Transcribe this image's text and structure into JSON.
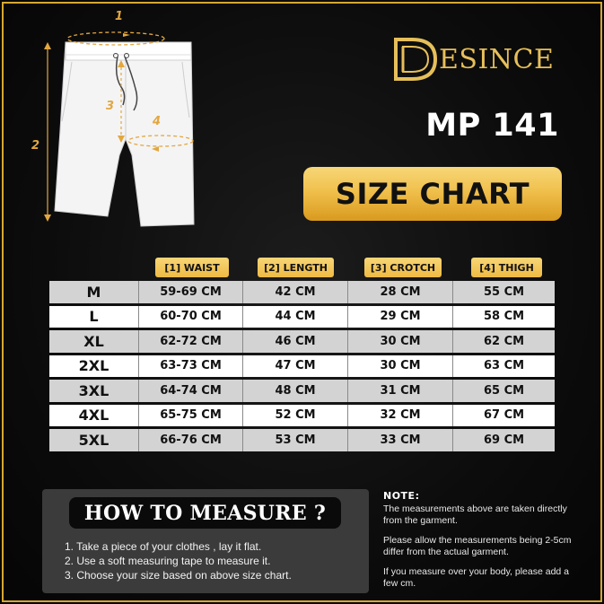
{
  "brand": {
    "name": "ESINCE",
    "logo_letter": "D"
  },
  "model": "MP 141",
  "title": "SIZE CHART",
  "measure_markers": [
    "1",
    "2",
    "3",
    "4"
  ],
  "table": {
    "headers": [
      "[1] WAIST",
      "[2] LENGTH",
      "[3] CROTCH",
      "[4] THIGH"
    ],
    "rows": [
      {
        "size": "M",
        "waist": "59-69 CM",
        "length": "42 CM",
        "crotch": "28 CM",
        "thigh": "55 CM"
      },
      {
        "size": "L",
        "waist": "60-70 CM",
        "length": "44 CM",
        "crotch": "29 CM",
        "thigh": "58 CM"
      },
      {
        "size": "XL",
        "waist": "62-72 CM",
        "length": "46 CM",
        "crotch": "30 CM",
        "thigh": "62 CM"
      },
      {
        "size": "2XL",
        "waist": "63-73 CM",
        "length": "47 CM",
        "crotch": "30 CM",
        "thigh": "63 CM"
      },
      {
        "size": "3XL",
        "waist": "64-74 CM",
        "length": "48 CM",
        "crotch": "31 CM",
        "thigh": "65 CM"
      },
      {
        "size": "4XL",
        "waist": "65-75 CM",
        "length": "52 CM",
        "crotch": "32 CM",
        "thigh": "67 CM"
      },
      {
        "size": "5XL",
        "waist": "66-76 CM",
        "length": "53 CM",
        "crotch": "33 CM",
        "thigh": "69 CM"
      }
    ]
  },
  "how_to_measure": {
    "title": "HOW TO MEASURE ?",
    "steps": [
      "1. Take a piece of your clothes , lay it flat.",
      "2. Use a soft measuring tape to measure it.",
      "3. Choose your size based on above size chart."
    ]
  },
  "note": {
    "title": "NOTE:",
    "paragraphs": [
      "The measurements above are taken directly from the garment.",
      "Please allow the measurements being 2-5cm differ from the actual garment.",
      "If you measure over your body, please add a few cm."
    ]
  },
  "colors": {
    "gold": "#f0c04c",
    "accent_orange": "#e2a740",
    "background": "#0c0c0c"
  }
}
